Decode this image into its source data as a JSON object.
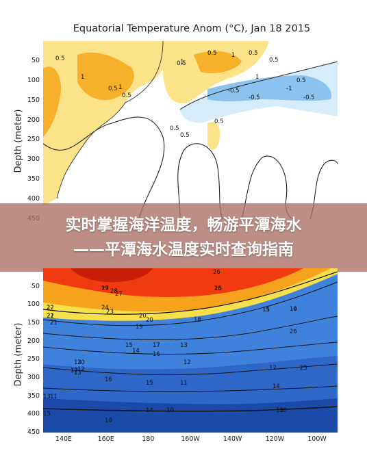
{
  "top_panel": {
    "title": "Equatorial Temperature Anom (°C), Jan 18 2015",
    "ylabel": "Depth (meter)"
  },
  "bottom_panel": {
    "ylabel": "Depth (meter)"
  },
  "banner": {
    "line1": "实时掌握海洋温度，畅游平潭海水",
    "line2": "——平潭海水温度实时查询指南"
  },
  "chart_data": [
    {
      "type": "heatmap",
      "title": "Equatorial Temperature Anom (°C), Jan 18 2015",
      "ylabel": "Depth (meter)",
      "y_ticks": [
        "50",
        "100",
        "150",
        "200",
        "250",
        "300",
        "350",
        "400",
        "450"
      ],
      "ylim": [
        450,
        0
      ],
      "contour_labels": [
        "0.5",
        "1",
        "0.5",
        "1",
        "0.5",
        "1",
        "0.5",
        "0.5",
        "1",
        "0.5",
        "0.5",
        "-0.5",
        "-1",
        "-0.5",
        "-0.5",
        "0.5",
        "0.5",
        "1",
        "0.5",
        "0.5"
      ],
      "colors": {
        "warm_light": "#fce38a",
        "warm_dark": "#f6b02c",
        "cool_light": "#d6ecfb",
        "cool_dark": "#8cc2ee"
      }
    },
    {
      "type": "heatmap",
      "ylabel": "Depth (meter)",
      "x_ticks": [
        "140E",
        "160E",
        "180",
        "160W",
        "140W",
        "120W",
        "100W"
      ],
      "y_ticks": [
        "50",
        "100",
        "150",
        "200",
        "250",
        "300",
        "350",
        "400",
        "450"
      ],
      "ylim": [
        450,
        0
      ],
      "contour_labels": [
        "29",
        "28",
        "27",
        "26",
        "25",
        "24",
        "23",
        "22",
        "21",
        "20",
        "19",
        "18",
        "17",
        "16",
        "15",
        "14",
        "13",
        "12",
        "11",
        "10",
        "26",
        "25",
        "20",
        "17",
        "16",
        "15",
        "14",
        "13",
        "15",
        "14",
        "13",
        "12",
        "13",
        "12",
        "11",
        "11",
        "10",
        "10",
        "10",
        "12",
        "13",
        "14",
        "15",
        "16",
        "17",
        "20",
        "22",
        "22",
        "21"
      ],
      "colors": {
        "warm": "#f03a10",
        "mid": "#f6a21c",
        "yellow": "#f8e04a",
        "cool": "#4f8fe0",
        "deep": "#1a4cb0"
      }
    }
  ]
}
